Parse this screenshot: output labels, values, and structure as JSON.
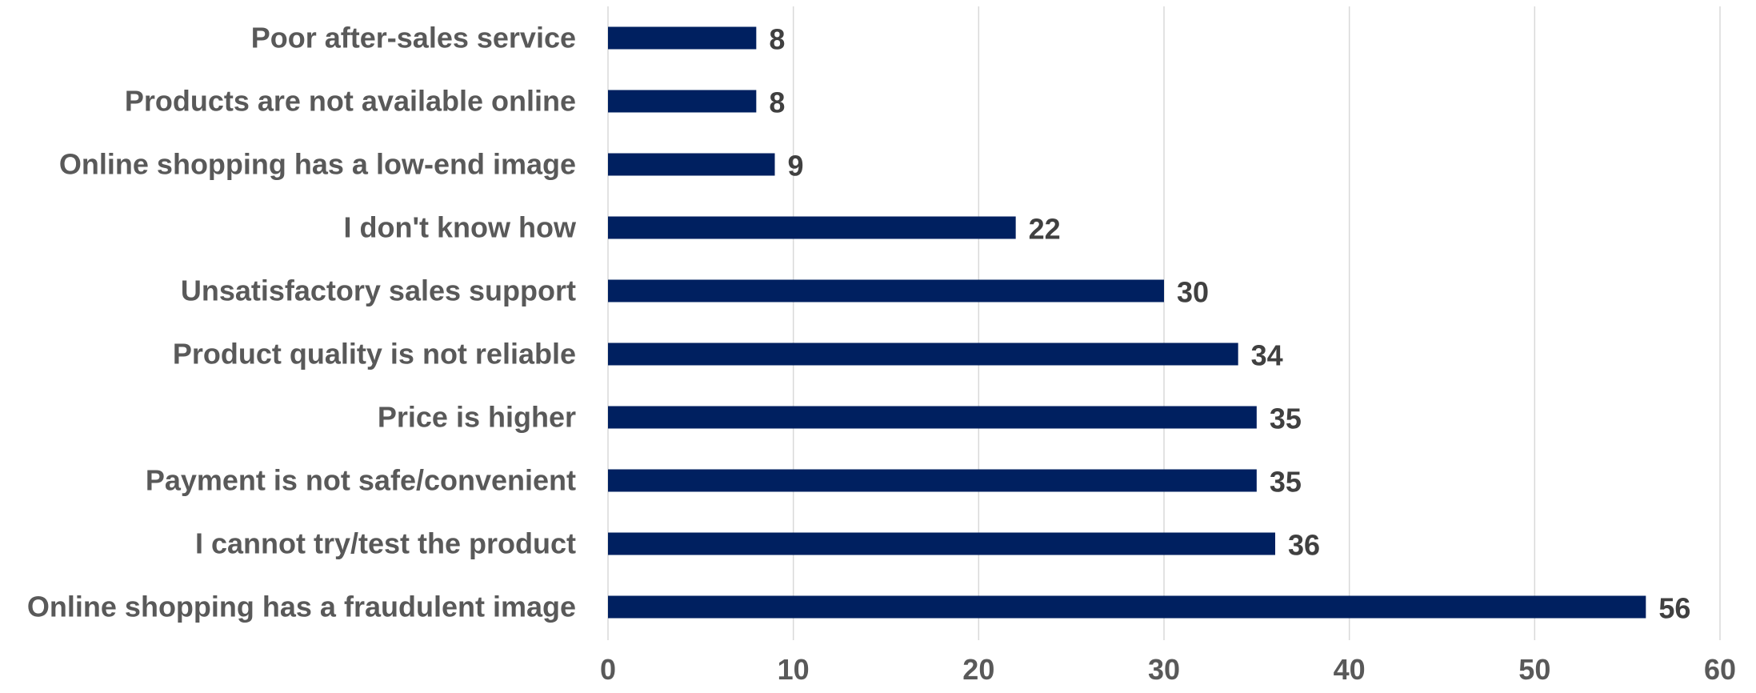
{
  "chart_data": {
    "type": "bar",
    "orientation": "horizontal",
    "title": "",
    "xlabel": "",
    "ylabel": "",
    "categories": [
      "Online shopping has a fraudulent image",
      "I cannot try/test the product",
      "Payment is not safe/convenient",
      "Price is higher",
      "Product quality is not reliable",
      "Unsatisfactory sales support",
      "I don't know how",
      "Online shopping has a low-end image",
      "Products are not available online",
      "Poor after-sales service"
    ],
    "values": [
      56,
      36,
      35,
      35,
      34,
      30,
      22,
      9,
      8,
      8
    ],
    "xlim": [
      0,
      60
    ],
    "xticks": [
      0,
      10,
      20,
      30,
      40,
      50,
      60
    ],
    "grid": true,
    "legend": "none",
    "bar_color": "#002060",
    "data_labels": true
  }
}
